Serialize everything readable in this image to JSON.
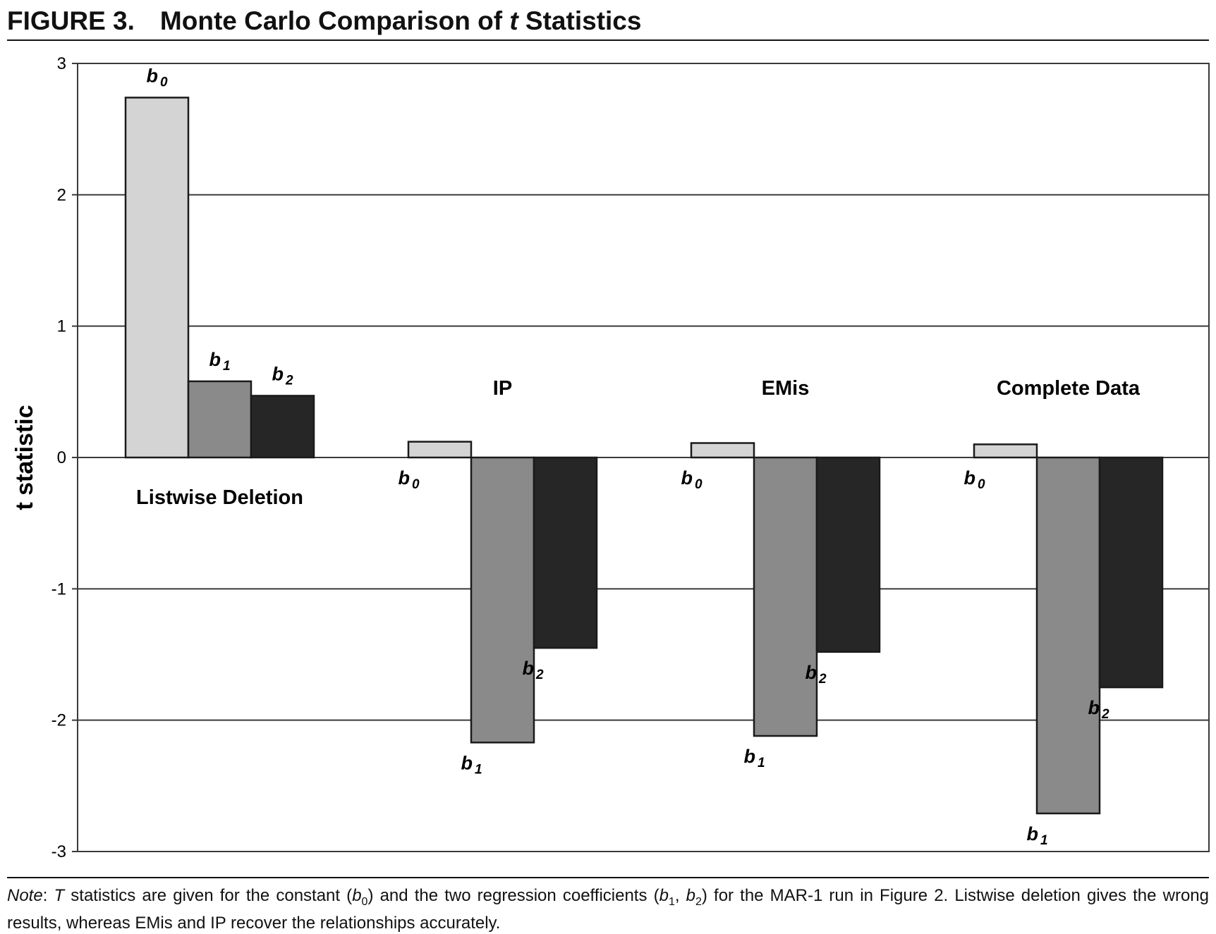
{
  "figure": {
    "number": "FIGURE 3.",
    "title_parts": [
      "Monte Carlo Comparison of ",
      "t",
      " Statistics"
    ]
  },
  "chart_data": {
    "type": "bar",
    "ylabel": "t statistic",
    "ylim": [
      -3,
      3
    ],
    "yticks": [
      3,
      2,
      1,
      0,
      -1,
      -2,
      -3
    ],
    "ytick_labels": [
      "3",
      "2",
      "1",
      "0",
      "-1",
      "-2",
      "-3"
    ],
    "grid": true,
    "categories": [
      "Listwise Deletion",
      "IP",
      "EMis",
      "Complete Data"
    ],
    "series": [
      {
        "name": "b0",
        "label_base": "b",
        "label_sub": "0",
        "color": "#d4d4d4",
        "values": [
          2.74,
          0.12,
          0.11,
          0.1
        ]
      },
      {
        "name": "b1",
        "label_base": "b",
        "label_sub": "1",
        "color": "#8a8a8a",
        "values": [
          0.58,
          -2.17,
          -2.12,
          -2.71
        ]
      },
      {
        "name": "b2",
        "label_base": "b",
        "label_sub": "2",
        "color": "#262626",
        "values": [
          0.47,
          -1.45,
          -1.48,
          -1.75
        ]
      }
    ],
    "colors": {
      "frame": "#3a3a3a",
      "grid": "#3a3a3a",
      "bar_stroke": "#1a1a1a"
    }
  },
  "note": {
    "label": "Note",
    "t1": ": ",
    "T": "T",
    "t2": " statistics are given for the constant (",
    "b": "b",
    "sub0": "0",
    "t3": ") and the two regression coefficients (",
    "sub1": "1",
    "sep": ", ",
    "sub2": "2",
    "t4": ") for the MAR-1 run in Figure 2. Listwise deletion gives the wrong results, whereas EMis and IP recover the relationships accurately."
  }
}
